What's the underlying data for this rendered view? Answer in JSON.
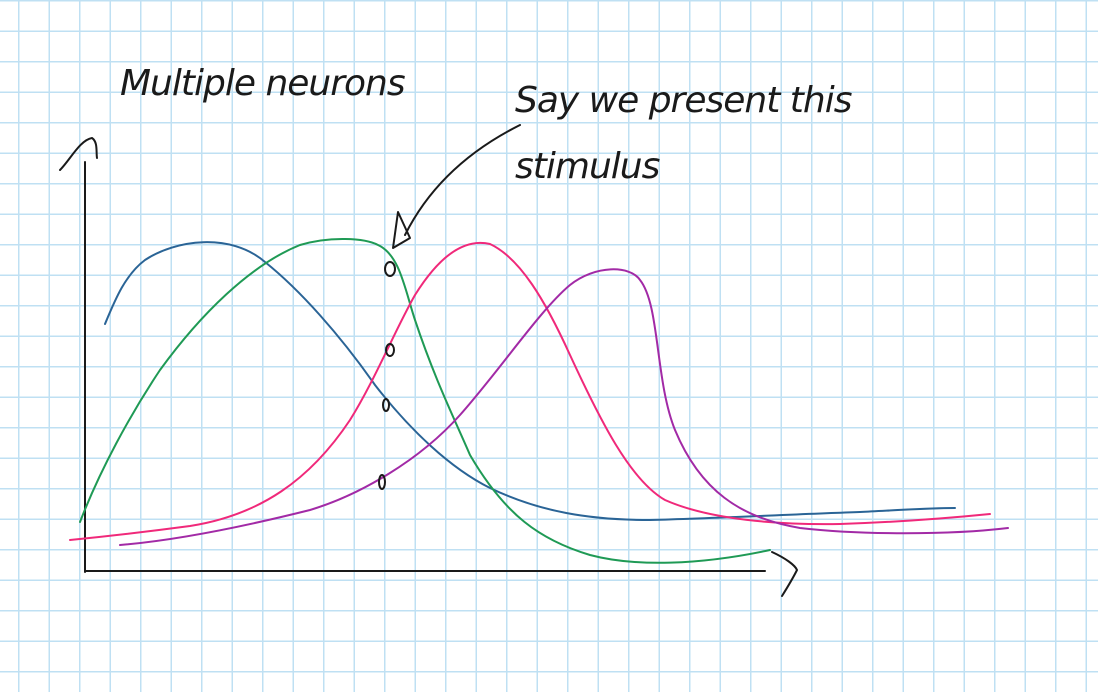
{
  "title": "Multiple neurons",
  "annotation": {
    "line1": "Say we present this",
    "line2": "stimulus"
  },
  "colors": {
    "ink": "#1a1a1a",
    "grid": "#bfe0f3",
    "neuron_blue": "#2a6496",
    "neuron_green": "#1f9a55",
    "neuron_pink": "#f0297a",
    "neuron_purple": "#a22aa6"
  },
  "curves": [
    "neuron_blue",
    "neuron_green",
    "neuron_pink",
    "neuron_purple"
  ],
  "stimulus_intersections": 4
}
